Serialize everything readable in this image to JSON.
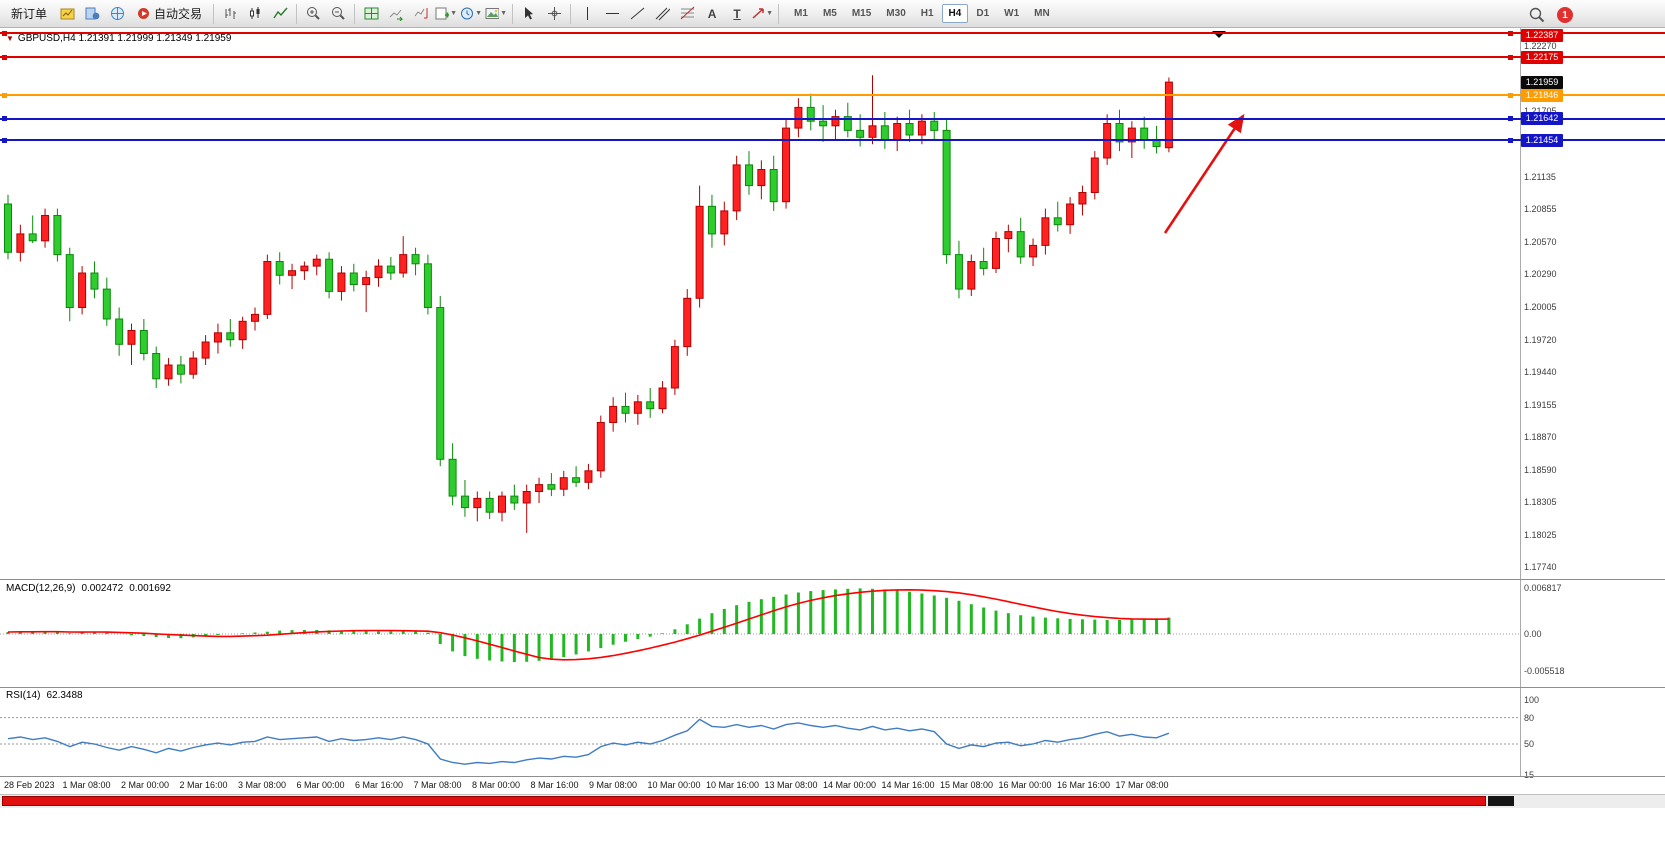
{
  "toolbar": {
    "new_order": "新订单",
    "auto_trading": "自动交易",
    "timeframes": [
      "M1",
      "M5",
      "M15",
      "M30",
      "H1",
      "H4",
      "D1",
      "W1",
      "MN"
    ],
    "active_timeframe": "H4",
    "notification_count": "1"
  },
  "chart": {
    "title": "GBPUSD,H4 1.21391 1.21999 1.21349 1.21959",
    "symbol": "GBPUSD",
    "period": "H4",
    "ohlc": {
      "open": "1.21391",
      "high": "1.21999",
      "low": "1.21349",
      "close": "1.21959"
    },
    "price_axis": {
      "plain_labels": [
        "1.22270",
        "1.21705",
        "1.21135",
        "1.20855",
        "1.20570",
        "1.20290",
        "1.20005",
        "1.19720",
        "1.19440",
        "1.19155",
        "1.18870",
        "1.18590",
        "1.18305",
        "1.18025",
        "1.17740"
      ],
      "current_price": {
        "label": "1.21959",
        "bg": "#0a0a0a"
      }
    },
    "lines": [
      {
        "price": 1.22387,
        "label": "1.22387",
        "color": "#e00000"
      },
      {
        "price": 1.22175,
        "label": "1.22175",
        "color": "#e00000"
      },
      {
        "price": 1.21846,
        "label": "1.21846",
        "color": "#ff9c00"
      },
      {
        "price": 1.21642,
        "label": "1.21642",
        "color": "#1515c8"
      },
      {
        "price": 1.21454,
        "label": "1.21454",
        "color": "#1515c8"
      }
    ],
    "time_axis_labels": [
      "28 Feb 2023",
      "1 Mar 08:00",
      "2 Mar 00:00",
      "2 Mar 16:00",
      "3 Mar 08:00",
      "6 Mar 00:00",
      "6 Mar 16:00",
      "7 Mar 08:00",
      "8 Mar 00:00",
      "8 Mar 16:00",
      "9 Mar 08:00",
      "10 Mar 00:00",
      "10 Mar 16:00",
      "13 Mar 08:00",
      "14 Mar 00:00",
      "14 Mar 16:00",
      "15 Mar 08:00",
      "16 Mar 00:00",
      "16 Mar 16:00",
      "17 Mar 08:00"
    ]
  },
  "macd": {
    "name": "MACD(12,26,9)",
    "value": "0.002472",
    "signal_value": "0.001692",
    "axis_labels": [
      "0.006817",
      "0.00",
      "-0.005518"
    ]
  },
  "rsi": {
    "name": "RSI(14)",
    "value": "62.3488",
    "axis_labels": [
      "100",
      "80",
      "50",
      "15"
    ],
    "levels": [
      80,
      50
    ]
  },
  "annotations": {
    "arrow": {
      "color": "#e31212"
    },
    "shift_marker_color": "#000000"
  },
  "chart_data": [
    {
      "type": "candlestick",
      "title": "GBPUSD H4, 28 Feb 2023 - 17 Mar 2023",
      "up_color": "#ff2222",
      "down_color": "#2ecc2e",
      "price_range": {
        "top": 1.2245,
        "bottom": 1.177
      },
      "candles": [
        [
          1.209,
          1.2098,
          1.2042,
          1.2048
        ],
        [
          1.2048,
          1.2072,
          1.204,
          1.2064
        ],
        [
          1.2064,
          1.208,
          1.2056,
          1.2058
        ],
        [
          1.2058,
          1.2086,
          1.2052,
          1.208
        ],
        [
          1.208,
          1.2086,
          1.204,
          1.2046
        ],
        [
          1.2046,
          1.2052,
          1.1988,
          1.2
        ],
        [
          1.2,
          1.2036,
          1.1994,
          1.203
        ],
        [
          1.203,
          1.204,
          1.2008,
          1.2016
        ],
        [
          1.2016,
          1.2026,
          1.1984,
          1.199
        ],
        [
          1.199,
          1.2,
          1.1958,
          1.1968
        ],
        [
          1.1968,
          1.1986,
          1.195,
          1.198
        ],
        [
          1.198,
          1.199,
          1.1954,
          1.196
        ],
        [
          1.196,
          1.1966,
          1.193,
          1.1938
        ],
        [
          1.1938,
          1.1956,
          1.1932,
          1.195
        ],
        [
          1.195,
          1.1958,
          1.1934,
          1.1942
        ],
        [
          1.1942,
          1.1962,
          1.1938,
          1.1956
        ],
        [
          1.1956,
          1.1976,
          1.195,
          1.197
        ],
        [
          1.197,
          1.1986,
          1.196,
          1.1978
        ],
        [
          1.1978,
          1.199,
          1.1966,
          1.1972
        ],
        [
          1.1972,
          1.1992,
          1.1964,
          1.1988
        ],
        [
          1.1988,
          1.2,
          1.198,
          1.1994
        ],
        [
          1.1994,
          1.2046,
          1.199,
          1.204
        ],
        [
          1.204,
          1.2048,
          1.202,
          1.2028
        ],
        [
          1.2028,
          1.2038,
          1.2016,
          1.2032
        ],
        [
          1.2032,
          1.204,
          1.2024,
          1.2036
        ],
        [
          1.2036,
          1.2046,
          1.2028,
          1.2042
        ],
        [
          1.2042,
          1.2048,
          1.2008,
          1.2014
        ],
        [
          1.2014,
          1.2036,
          1.2006,
          1.203
        ],
        [
          1.203,
          1.2038,
          1.2014,
          1.202
        ],
        [
          1.202,
          1.2032,
          1.1996,
          1.2026
        ],
        [
          1.2026,
          1.2042,
          1.2018,
          1.2036
        ],
        [
          1.2036,
          1.2044,
          1.2024,
          1.203
        ],
        [
          1.203,
          1.2062,
          1.2026,
          1.2046
        ],
        [
          1.2046,
          1.2052,
          1.2028,
          1.2038
        ],
        [
          1.2038,
          1.2046,
          1.1994,
          1.2
        ],
        [
          1.2,
          1.201,
          1.1862,
          1.1868
        ],
        [
          1.1868,
          1.1882,
          1.1828,
          1.1836
        ],
        [
          1.1836,
          1.185,
          1.1818,
          1.1826
        ],
        [
          1.1826,
          1.184,
          1.1814,
          1.1834
        ],
        [
          1.1834,
          1.184,
          1.1816,
          1.1822
        ],
        [
          1.1822,
          1.184,
          1.1814,
          1.1836
        ],
        [
          1.1836,
          1.1846,
          1.1824,
          1.183
        ],
        [
          1.183,
          1.1846,
          1.1804,
          1.184
        ],
        [
          1.184,
          1.1852,
          1.183,
          1.1846
        ],
        [
          1.1846,
          1.1856,
          1.1836,
          1.1842
        ],
        [
          1.1842,
          1.1858,
          1.1836,
          1.1852
        ],
        [
          1.1852,
          1.1862,
          1.1844,
          1.1848
        ],
        [
          1.1848,
          1.1864,
          1.1842,
          1.1858
        ],
        [
          1.1858,
          1.1906,
          1.1852,
          1.19
        ],
        [
          1.19,
          1.1922,
          1.1892,
          1.1914
        ],
        [
          1.1914,
          1.1926,
          1.19,
          1.1908
        ],
        [
          1.1908,
          1.1924,
          1.1898,
          1.1918
        ],
        [
          1.1918,
          1.193,
          1.1904,
          1.1912
        ],
        [
          1.1912,
          1.1936,
          1.1908,
          1.193
        ],
        [
          1.193,
          1.1972,
          1.1924,
          1.1966
        ],
        [
          1.1966,
          1.2016,
          1.1958,
          1.2008
        ],
        [
          1.2008,
          1.2106,
          1.2,
          1.2088
        ],
        [
          1.2088,
          1.2098,
          1.2052,
          1.2064
        ],
        [
          1.2064,
          1.2092,
          1.2054,
          1.2084
        ],
        [
          1.2084,
          1.2132,
          1.2076,
          1.2124
        ],
        [
          1.2124,
          1.2136,
          1.2098,
          1.2106
        ],
        [
          1.2106,
          1.2128,
          1.2094,
          1.212
        ],
        [
          1.212,
          1.2132,
          1.2084,
          1.2092
        ],
        [
          1.2092,
          1.2164,
          1.2086,
          1.2156
        ],
        [
          1.2156,
          1.2182,
          1.2148,
          1.2174
        ],
        [
          1.2174,
          1.2186,
          1.2154,
          1.2162
        ],
        [
          1.2162,
          1.2176,
          1.2144,
          1.2158
        ],
        [
          1.2158,
          1.2172,
          1.2146,
          1.2166
        ],
        [
          1.2166,
          1.2178,
          1.2148,
          1.2154
        ],
        [
          1.2154,
          1.2168,
          1.214,
          1.2148
        ],
        [
          1.2148,
          1.2202,
          1.2142,
          1.2158
        ],
        [
          1.2158,
          1.217,
          1.2138,
          1.2146
        ],
        [
          1.2146,
          1.2166,
          1.2136,
          1.216
        ],
        [
          1.216,
          1.2172,
          1.2144,
          1.215
        ],
        [
          1.215,
          1.2168,
          1.2142,
          1.2162
        ],
        [
          1.2162,
          1.217,
          1.2146,
          1.2154
        ],
        [
          1.2154,
          1.2164,
          1.2038,
          1.2046
        ],
        [
          1.2046,
          1.2058,
          1.2008,
          1.2016
        ],
        [
          1.2016,
          1.2046,
          1.201,
          1.204
        ],
        [
          1.204,
          1.2052,
          1.2028,
          1.2034
        ],
        [
          1.2034,
          1.2066,
          1.203,
          1.206
        ],
        [
          1.206,
          1.2072,
          1.2048,
          1.2066
        ],
        [
          1.2066,
          1.2078,
          1.2038,
          1.2044
        ],
        [
          1.2044,
          1.206,
          1.2036,
          1.2054
        ],
        [
          1.2054,
          1.2086,
          1.2046,
          1.2078
        ],
        [
          1.2078,
          1.2092,
          1.2066,
          1.2072
        ],
        [
          1.2072,
          1.2096,
          1.2064,
          1.209
        ],
        [
          1.209,
          1.2106,
          1.208,
          1.21
        ],
        [
          1.21,
          1.2136,
          1.2094,
          1.213
        ],
        [
          1.213,
          1.2168,
          1.2124,
          1.216
        ],
        [
          1.216,
          1.2172,
          1.2136,
          1.2144
        ],
        [
          1.2144,
          1.2162,
          1.213,
          1.2156
        ],
        [
          1.2156,
          1.2166,
          1.2138,
          1.2146
        ],
        [
          1.2146,
          1.2158,
          1.2134,
          1.214
        ],
        [
          1.2139,
          1.22,
          1.2135,
          1.2196
        ]
      ]
    },
    {
      "type": "bar",
      "name": "MACD(12,26,9)",
      "scale": 0.001,
      "bar_color": "#22b822",
      "signal_color": "#ff0000",
      "ylim": [
        -0.005518,
        0.006817
      ],
      "values": [
        0.3,
        0.35,
        0.32,
        0.4,
        0.32,
        0.12,
        0.22,
        0.3,
        0.18,
        0.0,
        -0.2,
        -0.3,
        -0.45,
        -0.6,
        -0.62,
        -0.5,
        -0.35,
        -0.15,
        0.0,
        0.1,
        0.22,
        0.35,
        0.5,
        0.58,
        0.6,
        0.6,
        0.55,
        0.52,
        0.48,
        0.45,
        0.42,
        0.4,
        0.42,
        0.38,
        0.2,
        -1.5,
        -2.6,
        -3.3,
        -3.7,
        -3.95,
        -4.1,
        -4.2,
        -4.15,
        -4.0,
        -3.8,
        -3.45,
        -3.05,
        -2.6,
        -2.1,
        -1.6,
        -1.15,
        -0.75,
        -0.4,
        0.1,
        0.7,
        1.45,
        2.3,
        3.1,
        3.75,
        4.3,
        4.8,
        5.2,
        5.55,
        5.9,
        6.2,
        6.4,
        6.55,
        6.65,
        6.75,
        6.8,
        6.75,
        6.65,
        6.5,
        6.3,
        6.05,
        5.75,
        5.4,
        4.95,
        4.45,
        3.95,
        3.5,
        3.1,
        2.8,
        2.6,
        2.45,
        2.35,
        2.25,
        2.2,
        2.15,
        2.1,
        2.1,
        2.15,
        2.25,
        2.35,
        2.47
      ]
    },
    {
      "type": "line",
      "name": "RSI(14)",
      "line_color": "#3f7cc4",
      "ylim": [
        15,
        100
      ],
      "levels": [
        80,
        50
      ],
      "values": [
        56,
        58,
        55,
        57,
        53,
        47,
        52,
        50,
        46,
        43,
        47,
        44,
        40,
        45,
        42,
        46,
        49,
        51,
        49,
        52,
        53,
        58,
        55,
        56,
        57,
        58,
        53,
        56,
        54,
        55,
        57,
        55,
        58,
        55,
        50,
        33,
        29,
        27,
        29,
        28,
        30,
        29,
        32,
        34,
        33,
        36,
        35,
        38,
        47,
        51,
        49,
        52,
        50,
        54,
        60,
        65,
        78,
        70,
        69,
        72,
        69,
        71,
        67,
        72,
        74,
        71,
        69,
        71,
        68,
        66,
        70,
        66,
        68,
        65,
        67,
        64,
        50,
        45,
        49,
        47,
        51,
        52,
        48,
        50,
        54,
        52,
        55,
        57,
        61,
        64,
        59,
        61,
        58,
        57,
        62.3
      ]
    }
  ]
}
